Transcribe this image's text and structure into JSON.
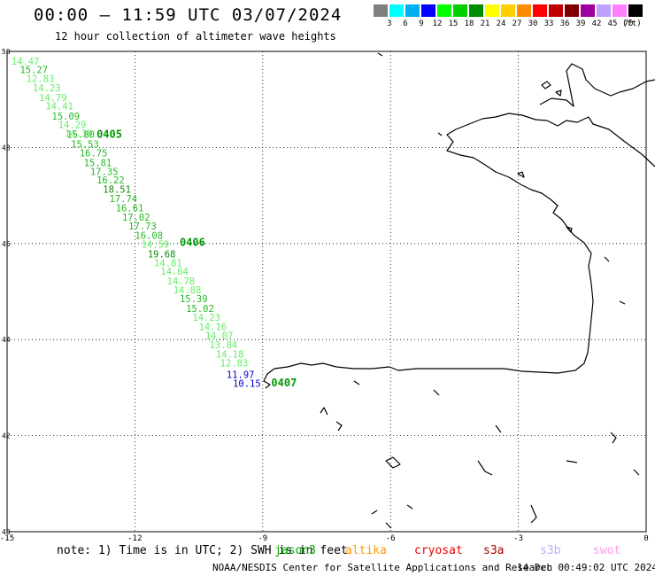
{
  "header": {
    "title": "00:00 – 11:59 UTC 03/07/2024",
    "subtitle": "12 hour collection of altimeter wave heights"
  },
  "legend": {
    "unit": "(ft)",
    "bins": [
      {
        "label": "3",
        "color": "#808080"
      },
      {
        "label": "6",
        "color": "#00ffff"
      },
      {
        "label": "9",
        "color": "#00b0f0"
      },
      {
        "label": "12",
        "color": "#0000ff"
      },
      {
        "label": "15",
        "color": "#00ff00"
      },
      {
        "label": "18",
        "color": "#00d000"
      },
      {
        "label": "21",
        "color": "#008c00"
      },
      {
        "label": "24",
        "color": "#ffff00"
      },
      {
        "label": "27",
        "color": "#ffd000"
      },
      {
        "label": "30",
        "color": "#ff8c00"
      },
      {
        "label": "33",
        "color": "#ff0000"
      },
      {
        "label": "36",
        "color": "#c00000"
      },
      {
        "label": "39",
        "color": "#800000"
      },
      {
        "label": "42",
        "color": "#a000a0"
      },
      {
        "label": "45",
        "color": "#c0a0ff"
      },
      {
        "label": "70",
        "color": "#ff80ff"
      },
      {
        "label": "",
        "color": "#000000"
      }
    ]
  },
  "axes": {
    "x_ticks": [
      "-15",
      "-12",
      "-9",
      "-6",
      "-3",
      "0"
    ],
    "x_values": [
      -15,
      -12,
      -9,
      -6,
      -3,
      0
    ],
    "y_ticks": [
      "50",
      "48",
      "46",
      "44",
      "42",
      "40"
    ],
    "y_values": [
      50,
      48,
      46,
      44,
      42,
      40
    ],
    "lon_range": [
      -15,
      0
    ],
    "lat_range": [
      40,
      50
    ]
  },
  "track": {
    "points": [
      {
        "label": "14.47",
        "lon": -14.9,
        "lat": 49.72,
        "color": "#66ee66"
      },
      {
        "label": "15.27",
        "lon": -14.7,
        "lat": 49.55,
        "color": "#22bb22"
      },
      {
        "label": "12.83",
        "lon": -14.55,
        "lat": 49.36,
        "color": "#66ee66"
      },
      {
        "label": "14.23",
        "lon": -14.4,
        "lat": 49.17,
        "color": "#66ee66"
      },
      {
        "label": "14.79",
        "lon": -14.25,
        "lat": 48.97,
        "color": "#66ee66"
      },
      {
        "label": "14.41",
        "lon": -14.1,
        "lat": 48.79,
        "color": "#66ee66"
      },
      {
        "label": "15.09",
        "lon": -13.95,
        "lat": 48.58,
        "color": "#22bb22"
      },
      {
        "label": "14.29",
        "lon": -13.8,
        "lat": 48.4,
        "color": "#66ee66"
      },
      {
        "label": "14.30",
        "lon": -13.65,
        "lat": 48.22,
        "color": "#66ee66"
      },
      {
        "label": "15.80",
        "lon": -13.6,
        "lat": 48.2,
        "color": "#22bb22"
      },
      {
        "label": "15.53",
        "lon": -13.5,
        "lat": 48.0,
        "color": "#22bb22"
      },
      {
        "label": "16.75",
        "lon": -13.3,
        "lat": 47.81,
        "color": "#22bb22"
      },
      {
        "label": "15.81",
        "lon": -13.2,
        "lat": 47.61,
        "color": "#22bb22"
      },
      {
        "label": "17.35",
        "lon": -13.05,
        "lat": 47.43,
        "color": "#22bb22"
      },
      {
        "label": "16.22",
        "lon": -12.9,
        "lat": 47.25,
        "color": "#22bb22"
      },
      {
        "label": "18.51",
        "lon": -12.75,
        "lat": 47.06,
        "color": "#118811"
      },
      {
        "label": "17.74",
        "lon": -12.6,
        "lat": 46.86,
        "color": "#22bb22"
      },
      {
        "label": "16.61",
        "lon": -12.45,
        "lat": 46.67,
        "color": "#22bb22"
      },
      {
        "label": "17.02",
        "lon": -12.3,
        "lat": 46.48,
        "color": "#22bb22"
      },
      {
        "label": "17.73",
        "lon": -12.15,
        "lat": 46.29,
        "color": "#22bb22"
      },
      {
        "label": "16.08",
        "lon": -12.0,
        "lat": 46.1,
        "color": "#22bb22"
      },
      {
        "label": "14.59",
        "lon": -11.85,
        "lat": 45.91,
        "color": "#66ee66"
      },
      {
        "label": "19.68",
        "lon": -11.7,
        "lat": 45.71,
        "color": "#118811"
      },
      {
        "label": "14.81",
        "lon": -11.55,
        "lat": 45.53,
        "color": "#66ee66"
      },
      {
        "label": "14.64",
        "lon": -11.4,
        "lat": 45.35,
        "color": "#66ee66"
      },
      {
        "label": "14.78",
        "lon": -11.25,
        "lat": 45.15,
        "color": "#66ee66"
      },
      {
        "label": "14.88",
        "lon": -11.1,
        "lat": 44.96,
        "color": "#66ee66"
      },
      {
        "label": "15.39",
        "lon": -10.95,
        "lat": 44.78,
        "color": "#22bb22"
      },
      {
        "label": "15.02",
        "lon": -10.8,
        "lat": 44.58,
        "color": "#22bb22"
      },
      {
        "label": "14.23",
        "lon": -10.65,
        "lat": 44.39,
        "color": "#66ee66"
      },
      {
        "label": "14.16",
        "lon": -10.5,
        "lat": 44.2,
        "color": "#66ee66"
      },
      {
        "label": "14.07",
        "lon": -10.35,
        "lat": 44.01,
        "color": "#66ee66"
      },
      {
        "label": "13.84",
        "lon": -10.25,
        "lat": 43.82,
        "color": "#66ee66"
      },
      {
        "label": "14.18",
        "lon": -10.1,
        "lat": 43.63,
        "color": "#66ee66"
      },
      {
        "label": "12.83",
        "lon": -10.0,
        "lat": 43.44,
        "color": "#66ee66"
      },
      {
        "label": "11.97",
        "lon": -9.85,
        "lat": 43.2,
        "color": "#0000cc"
      },
      {
        "label": "10.15",
        "lon": -9.7,
        "lat": 43.02,
        "color": "#0000cc"
      }
    ],
    "time_labels": [
      {
        "label": "0405",
        "lon": -12.9,
        "lat": 48.2
      },
      {
        "label": "0406",
        "lon": -10.95,
        "lat": 45.95
      },
      {
        "label": "0407",
        "lon": -8.8,
        "lat": 43.03
      }
    ],
    "time_label_color": "#009900"
  },
  "footer": {
    "note": "note: 1) Time is in UTC; 2) SWH is in feet",
    "satellites": [
      {
        "label": "jason3",
        "color": "#00aa00"
      },
      {
        "label": "altika",
        "color": "#ff9900"
      },
      {
        "label": "cryosat",
        "color": "#ee0000"
      },
      {
        "label": "s3a",
        "color": "#aa0000"
      },
      {
        "label": "s3b",
        "color": "#bbaaff"
      },
      {
        "label": "swot",
        "color": "#ff99ee"
      }
    ],
    "organization": "NOAA/NESDIS Center for Satellite Applications and Research",
    "generated": "14 Dec 00:49:02 UTC 2024"
  }
}
